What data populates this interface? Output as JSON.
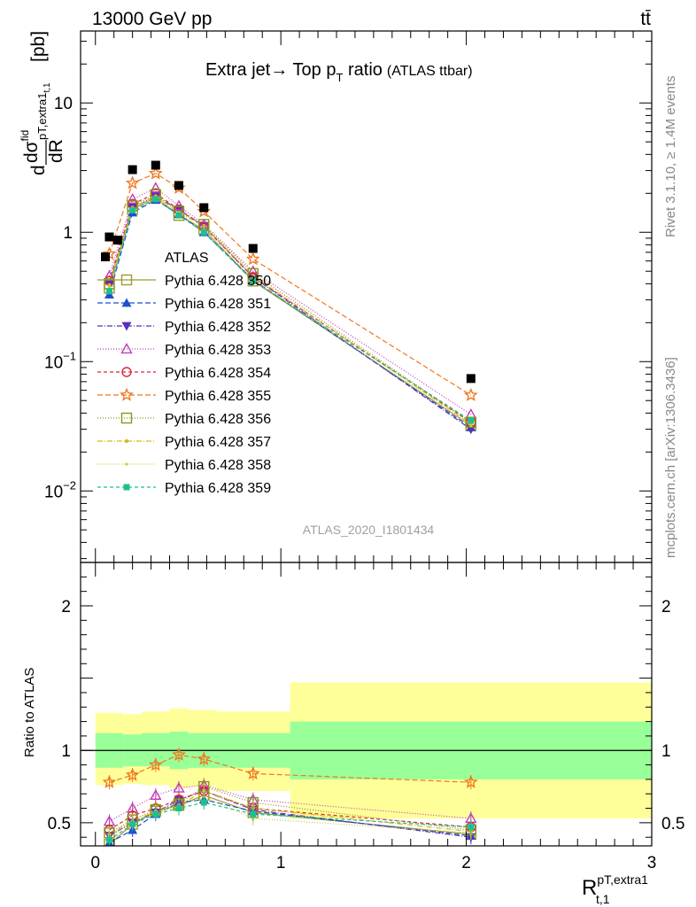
{
  "header": {
    "energy_label": "13000 GeV pp",
    "process_label": "tt̄"
  },
  "side_labels": {
    "rivet": "Rivet 3.1.10, ≥ 1.4M events",
    "mcplots": "mcplots.cern.ch [arXiv:1306.3436]"
  },
  "chart_data": [
    {
      "type": "scatter",
      "title_main": "Extra jet→ Top p",
      "title_sub": "T",
      "title_tail": " ratio",
      "title_small": "(ATLAS ttbar)",
      "ylabel_num": "dσ",
      "ylabel_num_sup": "fid",
      "ylabel_num_sub": "pT,extra1",
      "ylabel_num_subsub": "t,1",
      "ylabel_den": "dR",
      "ylabel_prefix": "d",
      "ylabel_unit": "[pb]",
      "analysis_label": "ATLAS_2020_I1801434",
      "yscale": "log",
      "xlim": [
        -0.08,
        3.0
      ],
      "ylim": [
        0.0028,
        36
      ],
      "x_ticks": [
        "0",
        "1",
        "2",
        "3"
      ],
      "y_ticks": [
        {
          "value": 10,
          "label": "10"
        },
        {
          "value": 1,
          "label": "1"
        },
        {
          "value": 0.1,
          "label": "10",
          "exp": "−1"
        },
        {
          "value": 0.01,
          "label": "10",
          "exp": "−2"
        }
      ],
      "x": [
        0.075,
        0.2,
        0.325,
        0.45,
        0.585,
        0.85,
        2.025
      ],
      "data": {
        "name": "ATLAS",
        "values": [
          0.92,
          3.05,
          3.3,
          2.3,
          1.55,
          0.75,
          0.074
        ],
        "extra_point": {
          "x": 0.12,
          "y": 0.87
        }
      },
      "series": [
        {
          "name": "Pythia 6.428 350",
          "color": "#9b9b2f",
          "marker": "square-open",
          "dash": "solid",
          "values": [
            0.37,
            1.5,
            1.85,
            1.35,
            1.05,
            0.42,
            0.032
          ]
        },
        {
          "name": "Pythia 6.428 351",
          "color": "#1f4fcf",
          "marker": "triangle-up",
          "dash": "6,3",
          "values": [
            0.33,
            1.42,
            1.78,
            1.38,
            1.0,
            0.43,
            0.031
          ]
        },
        {
          "name": "Pythia 6.428 352",
          "color": "#5a2ebf",
          "marker": "triangle-down",
          "dash": "6,2,1,2",
          "values": [
            0.4,
            1.55,
            1.9,
            1.5,
            1.12,
            0.45,
            0.03
          ]
        },
        {
          "name": "Pythia 6.428 353",
          "color": "#c23fb4",
          "marker": "triangle-open",
          "dash": "1,2",
          "values": [
            0.46,
            1.8,
            2.2,
            1.6,
            1.15,
            0.5,
            0.039
          ]
        },
        {
          "name": "Pythia 6.428 354",
          "color": "#d8283a",
          "marker": "circle-open",
          "dash": "4,3",
          "values": [
            0.42,
            1.65,
            2.0,
            1.5,
            1.1,
            0.45,
            0.034
          ]
        },
        {
          "name": "Pythia 6.428 355",
          "color": "#f07820",
          "marker": "star-open",
          "dash": "6,3",
          "values": [
            0.68,
            2.4,
            2.85,
            2.2,
            1.45,
            0.62,
            0.055
          ]
        },
        {
          "name": "Pythia 6.428 356",
          "color": "#7f9b1e",
          "marker": "square-open",
          "dash": "1,2",
          "values": [
            0.4,
            1.6,
            1.95,
            1.45,
            1.15,
            0.48,
            0.034
          ]
        },
        {
          "name": "Pythia 6.428 357",
          "color": "#d9b622",
          "marker": "dot",
          "dash": "6,2,1,2",
          "values": [
            0.39,
            1.55,
            1.9,
            1.42,
            1.12,
            0.46,
            0.033
          ]
        },
        {
          "name": "Pythia 6.428 358",
          "color": "#c4d23a",
          "marker": "dot-small",
          "dash": "1,2",
          "values": [
            0.38,
            1.52,
            1.85,
            1.4,
            1.05,
            0.43,
            0.032
          ]
        },
        {
          "name": "Pythia 6.428 359",
          "color": "#1fbf8f",
          "marker": "square-filled",
          "dash": "4,3",
          "values": [
            0.35,
            1.48,
            1.8,
            1.35,
            1.0,
            0.42,
            0.035
          ]
        }
      ]
    },
    {
      "type": "scatter",
      "ylabel": "Ratio to ATLAS",
      "xlabel_main": "R",
      "xlabel_sup": "pT,extra1",
      "xlabel_sub": "t,1",
      "xlim": [
        -0.08,
        3.0
      ],
      "ylim": [
        0.34,
        2.3
      ],
      "x_ticks": [
        "0",
        "1",
        "2",
        "3"
      ],
      "y_ticks": [
        "0.5",
        "1",
        "2"
      ],
      "reference_line": 1,
      "bands": {
        "edges": [
          0.0,
          0.15,
          0.25,
          0.4,
          0.5,
          0.65,
          1.05,
          3.0
        ],
        "green_low": [
          0.88,
          0.89,
          0.89,
          0.87,
          0.88,
          0.88,
          0.8
        ],
        "green_high": [
          1.12,
          1.11,
          1.12,
          1.13,
          1.12,
          1.12,
          1.2
        ],
        "yellow_low": [
          0.76,
          0.77,
          0.76,
          0.74,
          0.75,
          0.72,
          0.53
        ],
        "yellow_high": [
          1.26,
          1.25,
          1.27,
          1.29,
          1.28,
          1.27,
          1.47
        ]
      },
      "x": [
        0.075,
        0.2,
        0.325,
        0.45,
        0.585,
        0.85,
        2.025
      ],
      "series": [
        {
          "name": "Pythia 6.428 350",
          "values": [
            0.35,
            0.49,
            0.58,
            0.62,
            0.69,
            0.57,
            0.42
          ]
        },
        {
          "name": "Pythia 6.428 351",
          "values": [
            0.36,
            0.45,
            0.56,
            0.64,
            0.66,
            0.58,
            0.41
          ]
        },
        {
          "name": "Pythia 6.428 352",
          "values": [
            0.41,
            0.5,
            0.57,
            0.66,
            0.72,
            0.59,
            0.4
          ]
        },
        {
          "name": "Pythia 6.428 353",
          "values": [
            0.51,
            0.6,
            0.69,
            0.74,
            0.76,
            0.66,
            0.53
          ]
        },
        {
          "name": "Pythia 6.428 354",
          "values": [
            0.45,
            0.55,
            0.6,
            0.66,
            0.72,
            0.6,
            0.47
          ]
        },
        {
          "name": "Pythia 6.428 355",
          "values": [
            0.78,
            0.83,
            0.9,
            0.97,
            0.94,
            0.84,
            0.78
          ]
        },
        {
          "name": "Pythia 6.428 356",
          "values": [
            0.43,
            0.52,
            0.59,
            0.63,
            0.75,
            0.64,
            0.45
          ]
        },
        {
          "name": "Pythia 6.428 357",
          "values": [
            0.42,
            0.51,
            0.58,
            0.62,
            0.72,
            0.6,
            0.44
          ]
        },
        {
          "name": "Pythia 6.428 358",
          "values": [
            0.41,
            0.5,
            0.57,
            0.61,
            0.68,
            0.53,
            0.43
          ]
        },
        {
          "name": "Pythia 6.428 359",
          "values": [
            0.38,
            0.49,
            0.56,
            0.6,
            0.64,
            0.56,
            0.47
          ]
        }
      ]
    }
  ]
}
